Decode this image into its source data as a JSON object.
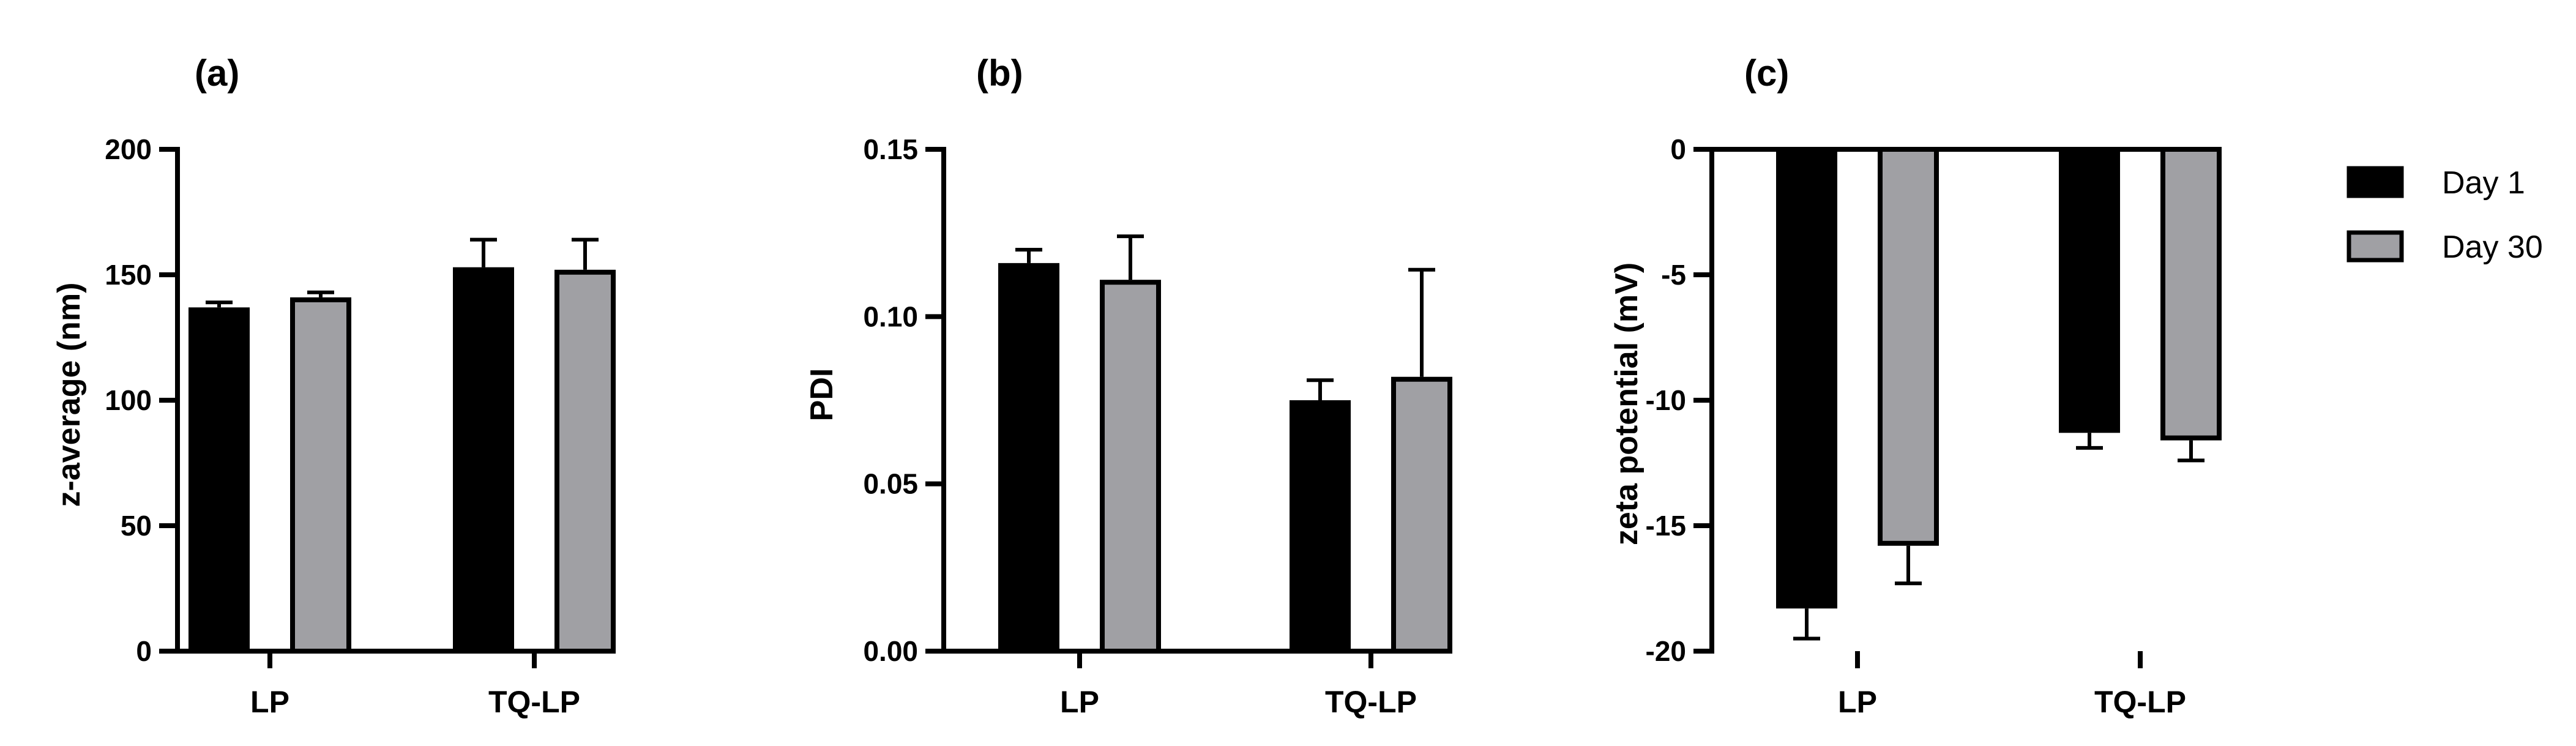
{
  "chart_data": [
    {
      "type": "bar",
      "panel_label": "(a)",
      "ylabel": "z-average (nm)",
      "xlabel": "",
      "categories": [
        "LP",
        "TQ-LP"
      ],
      "ylim": [
        0,
        200
      ],
      "yticks": [
        0,
        50,
        100,
        150,
        200
      ],
      "tick_labels": [
        "0",
        "50",
        "100",
        "150",
        "200"
      ],
      "series": [
        {
          "name": "Day 1",
          "values": [
            137,
            153
          ],
          "errors": [
            2,
            11
          ]
        },
        {
          "name": "Day 30",
          "values": [
            141,
            152
          ],
          "errors": [
            2,
            12
          ]
        }
      ]
    },
    {
      "type": "bar",
      "panel_label": "(b)",
      "ylabel": "PDI",
      "xlabel": "",
      "categories": [
        "LP",
        "TQ-LP"
      ],
      "ylim": [
        0,
        0.15
      ],
      "yticks": [
        0,
        0.05,
        0.1,
        0.15
      ],
      "tick_labels": [
        "0.00",
        "0.05",
        "0.10",
        "0.15"
      ],
      "series": [
        {
          "name": "Day 1",
          "values": [
            0.116,
            0.075
          ],
          "errors": [
            0.004,
            0.006
          ]
        },
        {
          "name": "Day 30",
          "values": [
            0.111,
            0.082
          ],
          "errors": [
            0.013,
            0.032
          ]
        }
      ]
    },
    {
      "type": "bar",
      "panel_label": "(c)",
      "ylabel": "zeta potential (mV)",
      "xlabel": "",
      "categories": [
        "LP",
        "TQ-LP"
      ],
      "ylim": [
        -20,
        0
      ],
      "yticks": [
        0,
        -5,
        -10,
        -15,
        -20
      ],
      "tick_labels": [
        "0",
        "-5",
        "-10",
        "-15",
        "-20"
      ],
      "series": [
        {
          "name": "Day 1",
          "values": [
            -18.3,
            -11.3
          ],
          "errors": [
            1.2,
            0.6
          ]
        },
        {
          "name": "Day 30",
          "values": [
            -15.8,
            -11.6
          ],
          "errors": [
            1.5,
            0.8
          ]
        }
      ]
    }
  ],
  "legend": {
    "placement": "right",
    "items": [
      {
        "label": "Day 1",
        "color": "#000000"
      },
      {
        "label": "Day 30",
        "color": "#a0a0a4"
      }
    ]
  },
  "colors": {
    "day1": "#000000",
    "day30": "#a0a0a4",
    "outline": "#000000"
  }
}
